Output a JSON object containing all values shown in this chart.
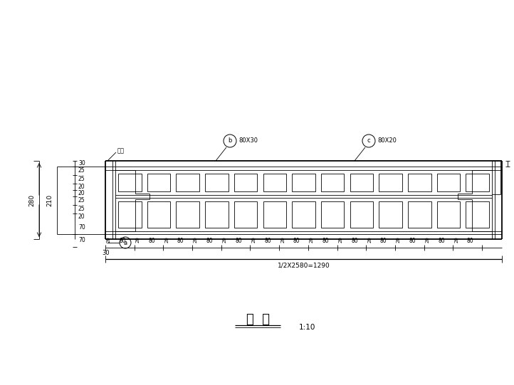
{
  "bg_color": "#ffffff",
  "line_color": "#000000",
  "title": "挂  落",
  "scale": "1:10",
  "label_a": "a",
  "label_b": "b  80X30",
  "label_c": "c  80X20",
  "label_hekou": "合榫",
  "dim_overall": "1/2X2580=1290",
  "dim_left_30": "30",
  "dim_280": "280",
  "dim_210": "210"
}
